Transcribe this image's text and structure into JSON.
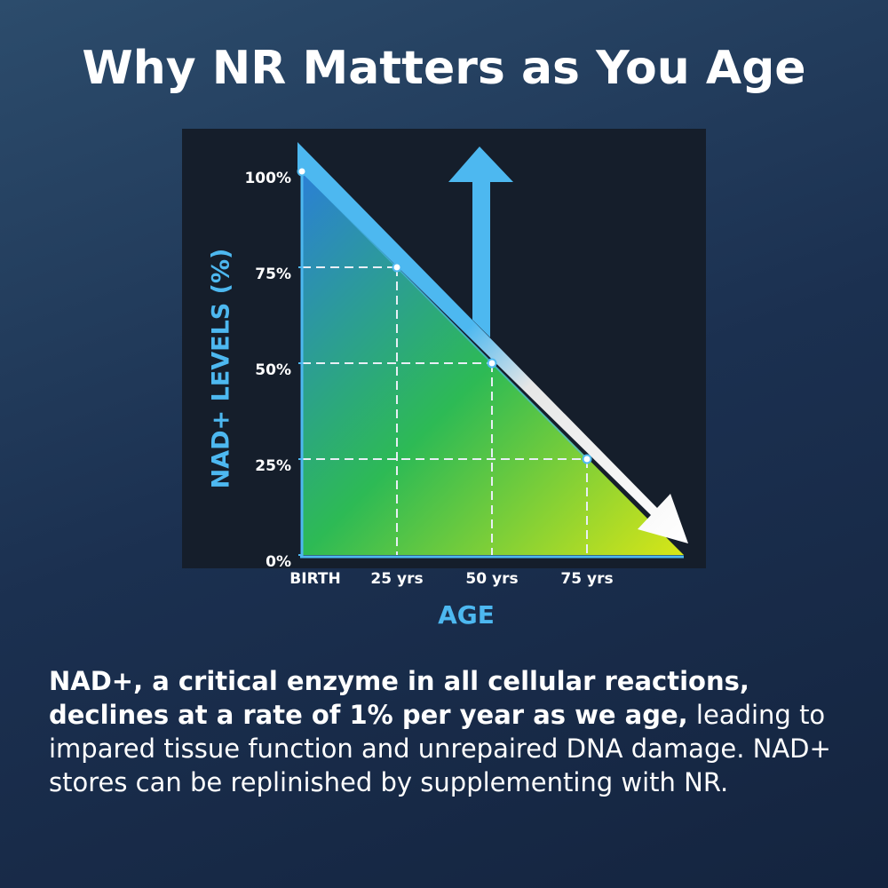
{
  "chart_data": {
    "type": "line",
    "title": "Why NR Matters as You Age",
    "x_label": "AGE",
    "y_label": "NAD+ LEVELS (%)",
    "categories": [
      "BIRTH",
      "25 yrs",
      "50 yrs",
      "75 yrs"
    ],
    "values": [
      100,
      75,
      50,
      25
    ],
    "color": "#4db8f0",
    "ylim": [
      0,
      100
    ],
    "yticks": [
      {
        "value": 0,
        "label": "0%"
      },
      {
        "value": 25,
        "label": "25%"
      },
      {
        "value": 50,
        "label": "50%"
      },
      {
        "value": 75,
        "label": "75%"
      },
      {
        "value": 100,
        "label": "100%"
      }
    ],
    "grid": true
  },
  "caption": {
    "bold": "NAD+, a critical enzyme in all cellular reactions, declines at a rate of 1% per year as we age,",
    "text": "leading to impared tissue function and unrepaired DNA damage. NAD+ stores can be replinished by supplementing with NR."
  }
}
